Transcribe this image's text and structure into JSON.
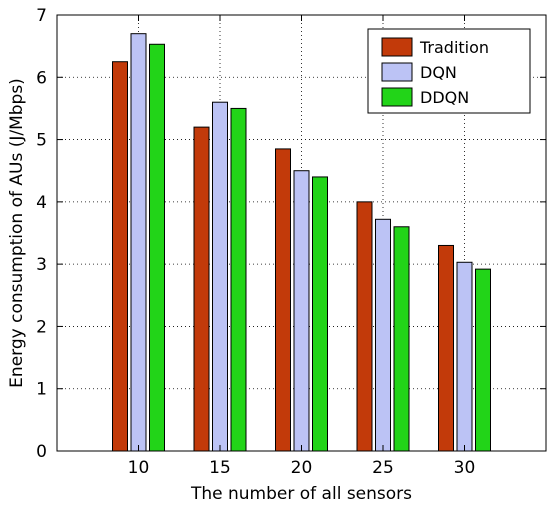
{
  "chart_data": {
    "type": "bar",
    "title": "",
    "xlabel": "The number of all sensors",
    "ylabel": "Energy consumption of AUs (J/Mbps)",
    "categories": [
      "10",
      "15",
      "20",
      "25",
      "30"
    ],
    "ylim": [
      0,
      7
    ],
    "yticks": [
      "0",
      "1",
      "2",
      "3",
      "4",
      "5",
      "6",
      "7"
    ],
    "grid": "dotted, both axes",
    "legend_position": "top-right",
    "series": [
      {
        "name": "Tradition",
        "color": "#c23a0a",
        "values": [
          6.25,
          5.2,
          4.85,
          4.0,
          3.3
        ]
      },
      {
        "name": "DQN",
        "color": "#bcc3f5",
        "values": [
          6.7,
          5.6,
          4.5,
          3.72,
          3.03
        ]
      },
      {
        "name": "DDQN",
        "color": "#22d418",
        "values": [
          6.53,
          5.5,
          4.4,
          3.6,
          2.92
        ]
      }
    ]
  }
}
